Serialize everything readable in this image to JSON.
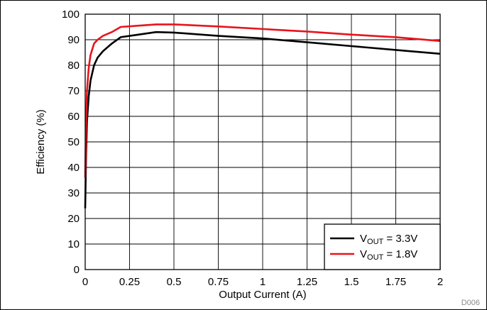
{
  "chart_data": {
    "type": "line",
    "title": "",
    "xlabel": "Output Current (A)",
    "ylabel": "Efficiency (%)",
    "xlim": [
      0,
      2
    ],
    "ylim": [
      0,
      100
    ],
    "x_ticks": [
      "0",
      "0.25",
      "0.5",
      "0.75",
      "1",
      "1.25",
      "1.5",
      "1.75",
      "2"
    ],
    "y_ticks": [
      "0",
      "10",
      "20",
      "30",
      "40",
      "50",
      "60",
      "70",
      "80",
      "90",
      "100"
    ],
    "grid": true,
    "legend_position": "bottom-right",
    "series": [
      {
        "legend_main": "V",
        "legend_sub": "OUT",
        "legend_tail": " = 3.3V",
        "color": "#000000",
        "x": [
          0,
          0.005,
          0.01,
          0.02,
          0.03,
          0.05,
          0.07,
          0.1,
          0.15,
          0.2,
          0.3,
          0.4,
          0.5,
          0.75,
          1.0,
          1.25,
          1.5,
          1.75,
          2.0
        ],
        "y": [
          24,
          45,
          58,
          68,
          74,
          80,
          83,
          85.5,
          88.5,
          91,
          92,
          93,
          92.8,
          91.5,
          90.5,
          89,
          87.5,
          86,
          84.5
        ]
      },
      {
        "legend_main": "V",
        "legend_sub": "OUT",
        "legend_tail": " = 1.8V",
        "color": "#e8141b",
        "x": [
          0,
          0.005,
          0.01,
          0.02,
          0.03,
          0.05,
          0.07,
          0.1,
          0.15,
          0.2,
          0.3,
          0.4,
          0.5,
          0.75,
          1.0,
          1.25,
          1.5,
          1.75,
          2.0
        ],
        "y": [
          36,
          58,
          70,
          79,
          84,
          88.5,
          90,
          91.5,
          93,
          95,
          95.5,
          96,
          96,
          95.2,
          94.2,
          93.2,
          92,
          91,
          89.5
        ]
      }
    ]
  },
  "figure_id": "D006"
}
